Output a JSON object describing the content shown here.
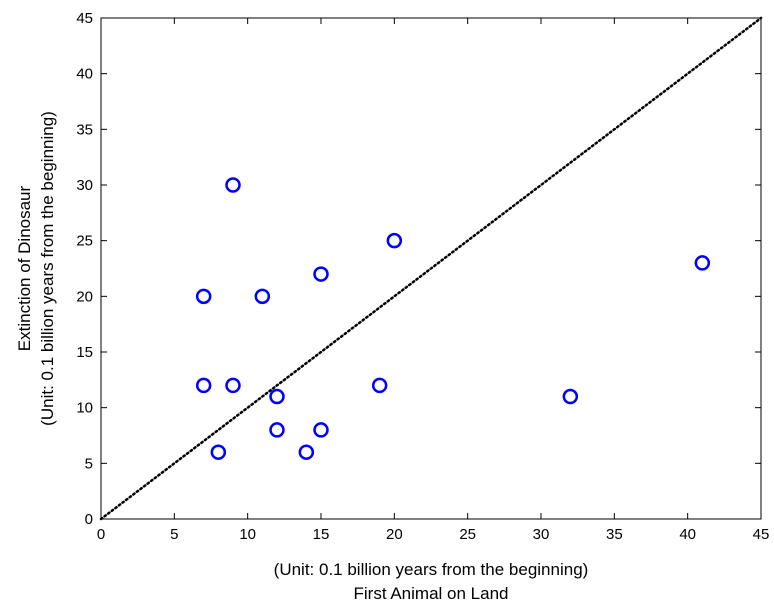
{
  "chart_data": {
    "type": "scatter",
    "title": "",
    "xlabel_lines": [
      "(Unit: 0.1 billion years from the beginning)",
      "First Animal on Land"
    ],
    "ylabel_lines": [
      "Extinction of Dinosaur",
      "(Unit: 0.1 billion years from the beginning)"
    ],
    "xlim": [
      0,
      45
    ],
    "ylim": [
      0,
      45
    ],
    "xticks": [
      "0",
      "5",
      "10",
      "15",
      "20",
      "25",
      "30",
      "35",
      "40",
      "45"
    ],
    "yticks": [
      "0",
      "5",
      "10",
      "15",
      "20",
      "25",
      "30",
      "35",
      "40",
      "45"
    ],
    "grid": false,
    "marker": "circle-open",
    "marker_color": "#0000ff",
    "points": [
      {
        "x": 7,
        "y": 20
      },
      {
        "x": 7,
        "y": 12
      },
      {
        "x": 8,
        "y": 6
      },
      {
        "x": 9,
        "y": 30
      },
      {
        "x": 9,
        "y": 12
      },
      {
        "x": 11,
        "y": 20
      },
      {
        "x": 12,
        "y": 11
      },
      {
        "x": 12,
        "y": 8
      },
      {
        "x": 14,
        "y": 6
      },
      {
        "x": 15,
        "y": 22
      },
      {
        "x": 15,
        "y": 8
      },
      {
        "x": 19,
        "y": 12
      },
      {
        "x": 20,
        "y": 25
      },
      {
        "x": 32,
        "y": 11
      },
      {
        "x": 41,
        "y": 23
      }
    ],
    "reference_line": {
      "style": "dotted",
      "color": "#000000",
      "from": [
        0,
        0
      ],
      "to": [
        45,
        45
      ]
    }
  }
}
